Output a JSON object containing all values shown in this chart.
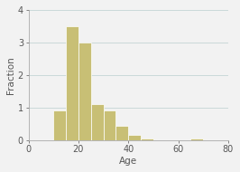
{
  "bin_left": [
    10,
    15,
    20,
    25,
    30,
    35,
    40,
    45,
    50,
    55,
    60,
    65,
    70
  ],
  "bin_width": 5,
  "bar_heights": [
    0.9,
    3.5,
    3.0,
    1.1,
    0.9,
    0.45,
    0.15,
    0.05,
    0.0,
    0.0,
    0.0,
    0.05,
    0.0
  ],
  "bar_color": "#c8bf75",
  "bar_edgecolor": "#ffffff",
  "xlabel": "Age",
  "ylabel": "Fraction",
  "xlim": [
    0,
    80
  ],
  "ylim": [
    0,
    4
  ],
  "xticks": [
    0,
    20,
    40,
    60,
    80
  ],
  "yticks": [
    0,
    1,
    2,
    3,
    4
  ],
  "grid_color": "#b8cece",
  "grid_alpha": 0.8,
  "bg_color": "#f2f2f2",
  "spine_color": "#aaaaaa",
  "tick_color": "#555555",
  "fontsize": 7.0,
  "label_fontsize": 7.5
}
